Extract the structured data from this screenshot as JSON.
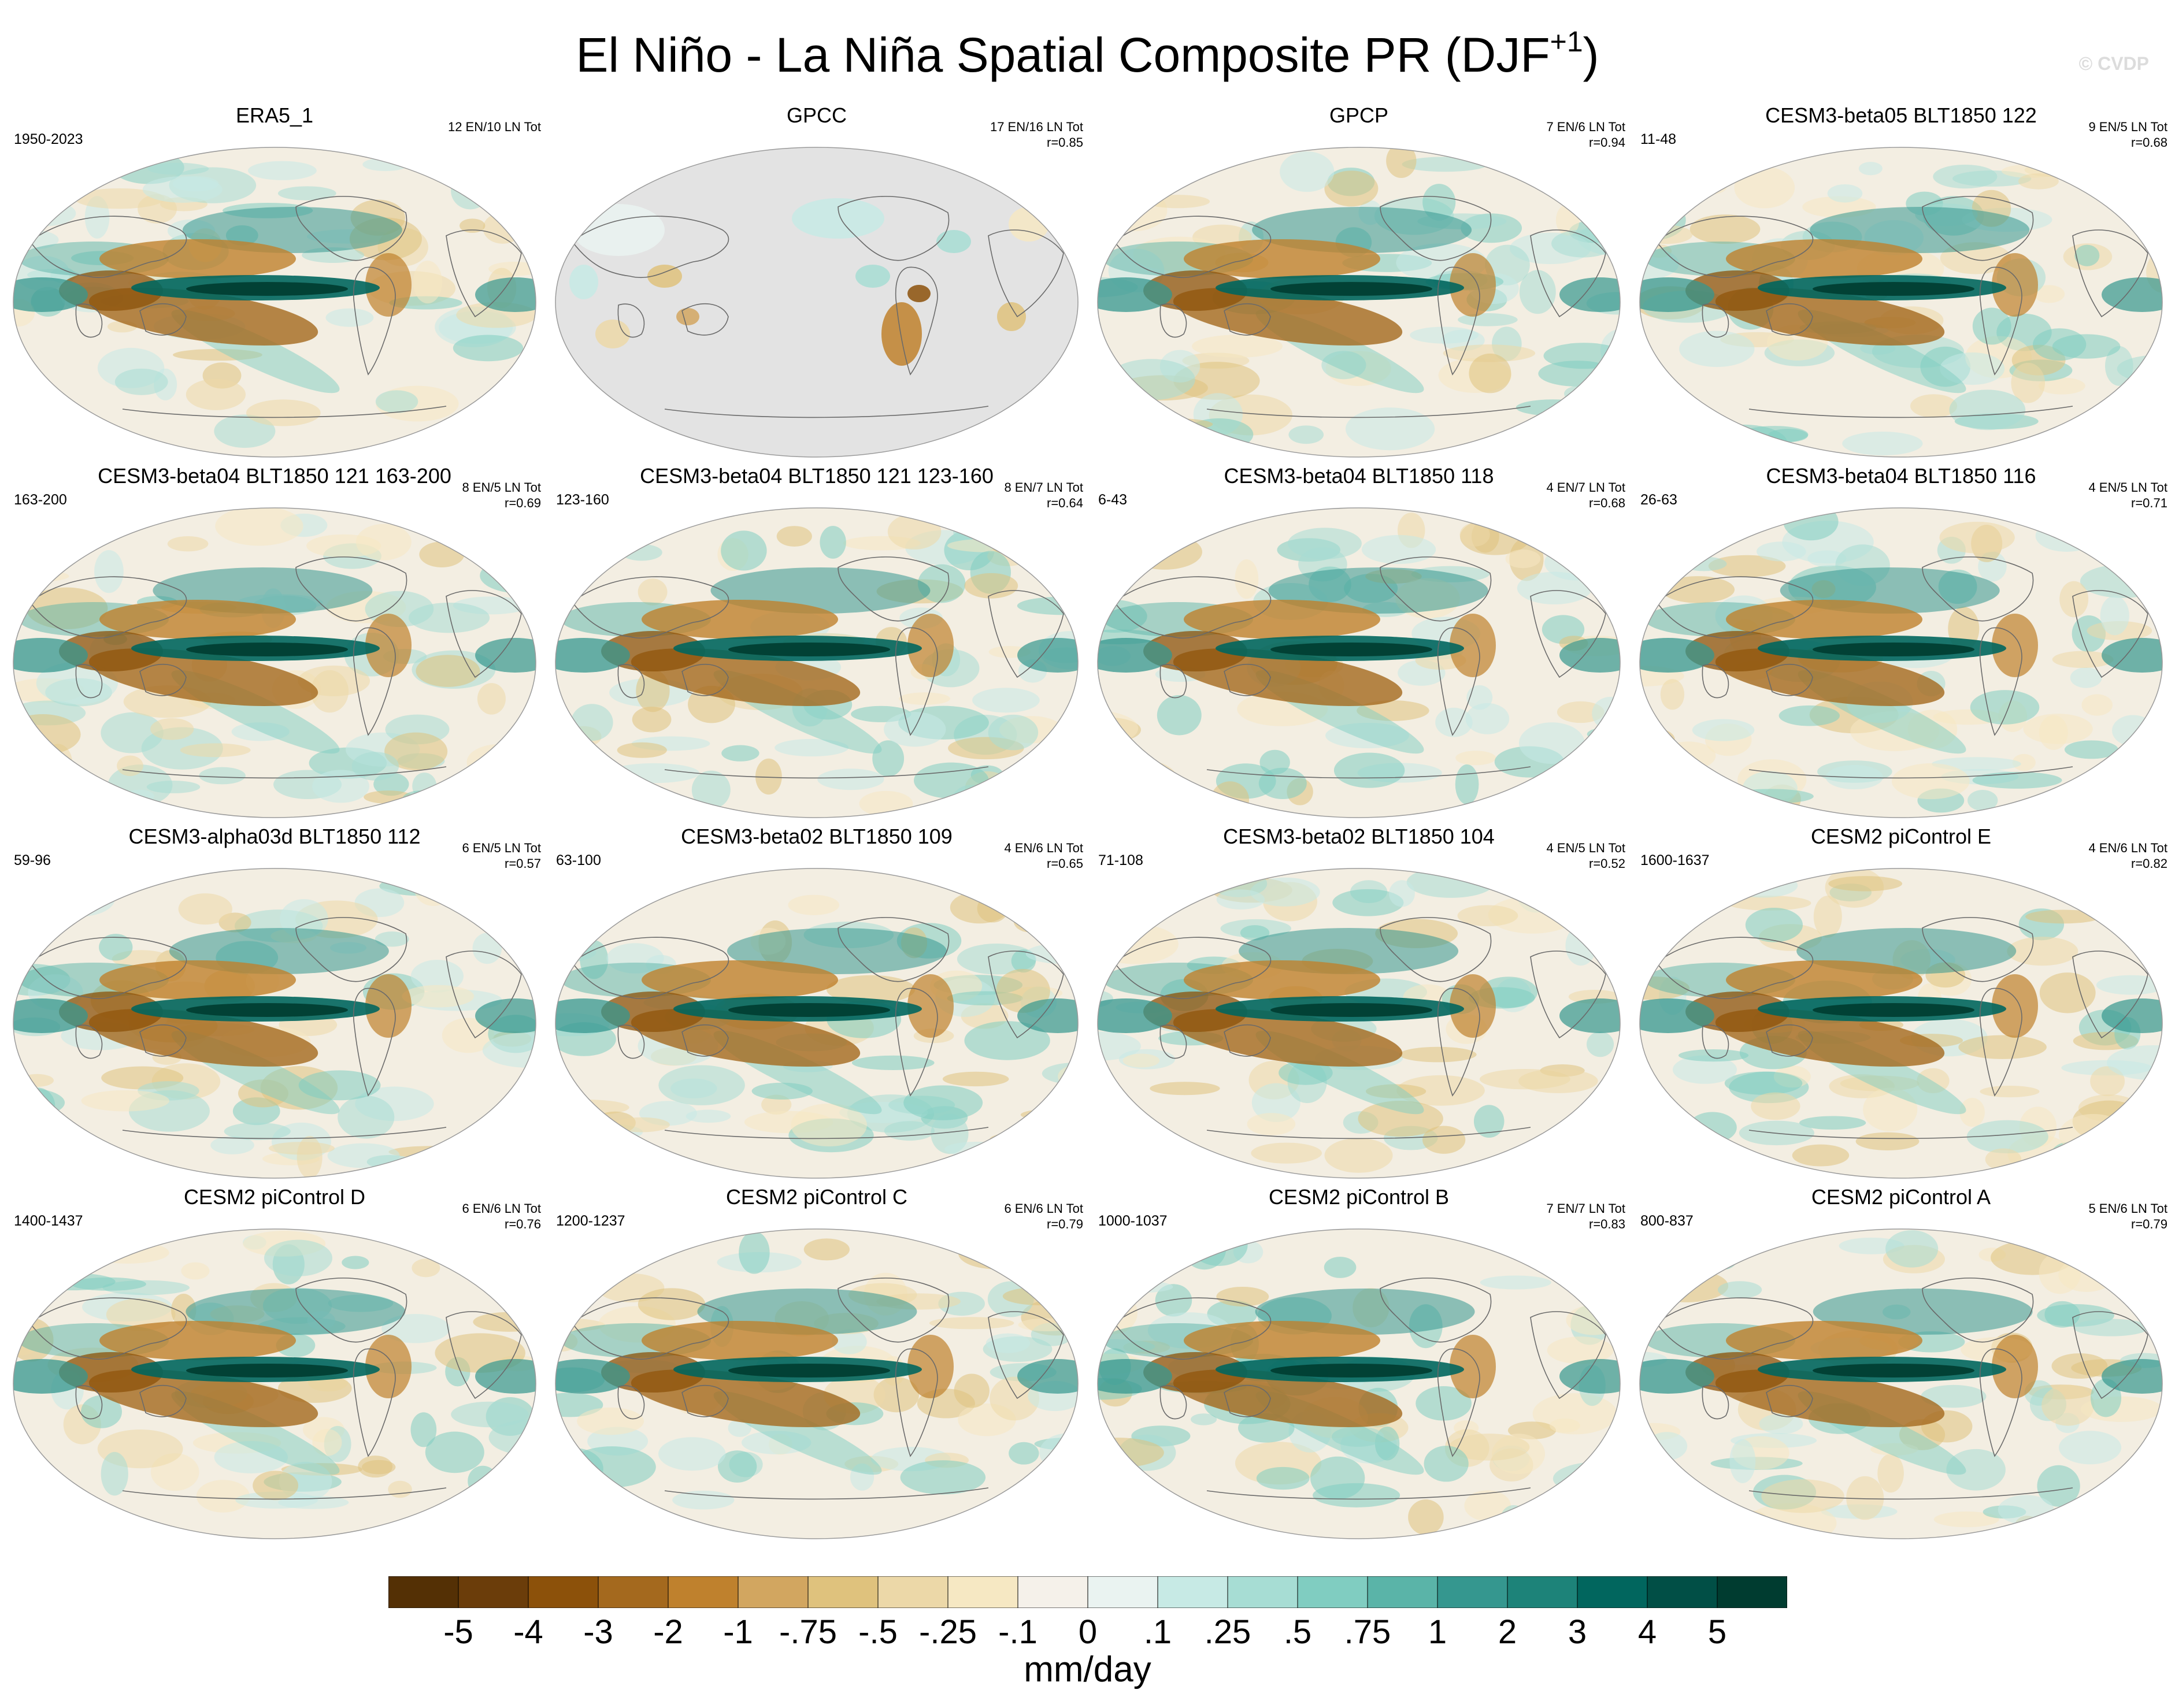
{
  "title": {
    "main": "El Niño - La Niña Spatial Composite PR (DJF",
    "sup": "+1",
    "close": ")"
  },
  "watermark": "© CVDP",
  "units": "mm/day",
  "colorbar": {
    "colors": [
      "#543005",
      "#6b3d0a",
      "#8c510a",
      "#a4691e",
      "#bf812d",
      "#d2a660",
      "#dfc27d",
      "#ecd8a8",
      "#f6e8c3",
      "#f5f1ea",
      "#eaf3f1",
      "#c7eae5",
      "#a7ddd4",
      "#80cdc1",
      "#5ab4a8",
      "#35978f",
      "#1d8379",
      "#01665e",
      "#014f46",
      "#003c30"
    ],
    "ticks": [
      "-5",
      "-4",
      "-3",
      "-2",
      "-1",
      "-.75",
      "-.5",
      "-.25",
      "-.1",
      "0",
      ".1",
      ".25",
      ".5",
      ".75",
      "1",
      "2",
      "3",
      "4",
      "5"
    ]
  },
  "panels": [
    {
      "title": "ERA5_1",
      "years": "1950-2023",
      "count": "12 EN/10 LN Tot",
      "r": "",
      "kind": "obs"
    },
    {
      "title": "GPCC",
      "years": "",
      "count": "17 EN/16 LN Tot",
      "r": "r=0.85",
      "kind": "land"
    },
    {
      "title": "GPCP",
      "years": "",
      "count": "7 EN/6 LN Tot",
      "r": "r=0.94",
      "kind": "obs"
    },
    {
      "title": "CESM3-beta05 BLT1850 122",
      "years": "11-48",
      "count": "9 EN/5 LN Tot",
      "r": "r=0.68",
      "kind": "model"
    },
    {
      "title": "CESM3-beta04 BLT1850 121 163-200",
      "years": "163-200",
      "count": "8 EN/5 LN Tot",
      "r": "r=0.69",
      "kind": "model"
    },
    {
      "title": "CESM3-beta04 BLT1850 121 123-160",
      "years": "123-160",
      "count": "8 EN/7 LN Tot",
      "r": "r=0.64",
      "kind": "model"
    },
    {
      "title": "CESM3-beta04 BLT1850 118",
      "years": "6-43",
      "count": "4 EN/7 LN Tot",
      "r": "r=0.68",
      "kind": "model"
    },
    {
      "title": "CESM3-beta04 BLT1850 116",
      "years": "26-63",
      "count": "4 EN/5 LN Tot",
      "r": "r=0.71",
      "kind": "model"
    },
    {
      "title": "CESM3-alpha03d BLT1850 112",
      "years": "59-96",
      "count": "6 EN/5 LN Tot",
      "r": "r=0.57",
      "kind": "model"
    },
    {
      "title": "CESM3-beta02 BLT1850 109",
      "years": "63-100",
      "count": "4 EN/6 LN Tot",
      "r": "r=0.65",
      "kind": "model"
    },
    {
      "title": "CESM3-beta02 BLT1850 104",
      "years": "71-108",
      "count": "4 EN/5 LN Tot",
      "r": "r=0.52",
      "kind": "model"
    },
    {
      "title": "CESM2 piControl E",
      "years": "1600-1637",
      "count": "4 EN/6 LN Tot",
      "r": "r=0.82",
      "kind": "model"
    },
    {
      "title": "CESM2 piControl D",
      "years": "1400-1437",
      "count": "6 EN/6 LN Tot",
      "r": "r=0.76",
      "kind": "model"
    },
    {
      "title": "CESM2 piControl C",
      "years": "1200-1237",
      "count": "6 EN/6 LN Tot",
      "r": "r=0.79",
      "kind": "model"
    },
    {
      "title": "CESM2 piControl B",
      "years": "1000-1037",
      "count": "7 EN/7 LN Tot",
      "r": "r=0.83",
      "kind": "model"
    },
    {
      "title": "CESM2 piControl A",
      "years": "800-837",
      "count": "5 EN/6 LN Tot",
      "r": "r=0.79",
      "kind": "model"
    }
  ]
}
